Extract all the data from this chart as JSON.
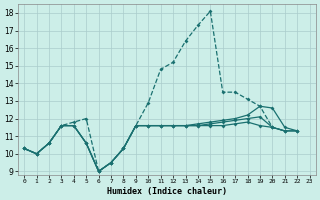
{
  "xlabel": "Humidex (Indice chaleur)",
  "bg_color": "#cceee8",
  "grid_color": "#aacccc",
  "line_color": "#1a7070",
  "xlim": [
    -0.5,
    23.5
  ],
  "ylim": [
    8.8,
    18.5
  ],
  "yticks": [
    9,
    10,
    11,
    12,
    13,
    14,
    15,
    16,
    17,
    18
  ],
  "xticks": [
    0,
    1,
    2,
    3,
    4,
    5,
    6,
    7,
    8,
    9,
    10,
    11,
    12,
    13,
    14,
    15,
    16,
    17,
    18,
    19,
    20,
    21,
    22,
    23
  ],
  "curves": [
    {
      "x": [
        0,
        1,
        2,
        3,
        4,
        5,
        6,
        7,
        8,
        9,
        10,
        11,
        12,
        13,
        14,
        15,
        16,
        17,
        18,
        19,
        20,
        21
      ],
      "y": [
        10.3,
        10.0,
        10.6,
        11.6,
        11.8,
        12.0,
        9.0,
        9.5,
        10.3,
        11.6,
        12.9,
        14.8,
        15.2,
        16.4,
        17.3,
        18.1,
        13.5,
        13.5,
        13.1,
        12.7,
        11.5,
        11.3
      ],
      "ls": "--"
    },
    {
      "x": [
        0,
        1,
        2,
        3,
        4,
        5,
        6,
        7,
        8,
        9,
        10,
        11,
        12,
        13,
        14,
        15,
        16,
        17,
        18,
        19,
        20,
        21,
        22
      ],
      "y": [
        10.3,
        10.0,
        10.6,
        11.6,
        11.6,
        10.6,
        9.0,
        9.5,
        10.3,
        11.6,
        11.6,
        11.6,
        11.6,
        11.6,
        11.7,
        11.8,
        11.9,
        12.0,
        12.2,
        12.7,
        12.6,
        11.5,
        11.3
      ],
      "ls": "-"
    },
    {
      "x": [
        0,
        1,
        2,
        3,
        4,
        5,
        6,
        7,
        8,
        9,
        10,
        11,
        12,
        13,
        14,
        15,
        16,
        17,
        18,
        19,
        20,
        21,
        22
      ],
      "y": [
        10.3,
        10.0,
        10.6,
        11.6,
        11.6,
        10.6,
        9.0,
        9.5,
        10.3,
        11.6,
        11.6,
        11.6,
        11.6,
        11.6,
        11.6,
        11.7,
        11.8,
        11.9,
        12.0,
        12.1,
        11.5,
        11.3,
        11.3
      ],
      "ls": "-"
    },
    {
      "x": [
        0,
        1,
        2,
        3,
        4,
        5,
        6,
        7,
        8,
        9,
        10,
        11,
        12,
        13,
        14,
        15,
        16,
        17,
        18,
        19,
        20,
        21,
        22
      ],
      "y": [
        10.3,
        10.0,
        10.6,
        11.6,
        11.6,
        10.6,
        9.0,
        9.5,
        10.3,
        11.6,
        11.6,
        11.6,
        11.6,
        11.6,
        11.6,
        11.6,
        11.6,
        11.7,
        11.8,
        11.6,
        11.5,
        11.3,
        11.3
      ],
      "ls": "-"
    }
  ]
}
